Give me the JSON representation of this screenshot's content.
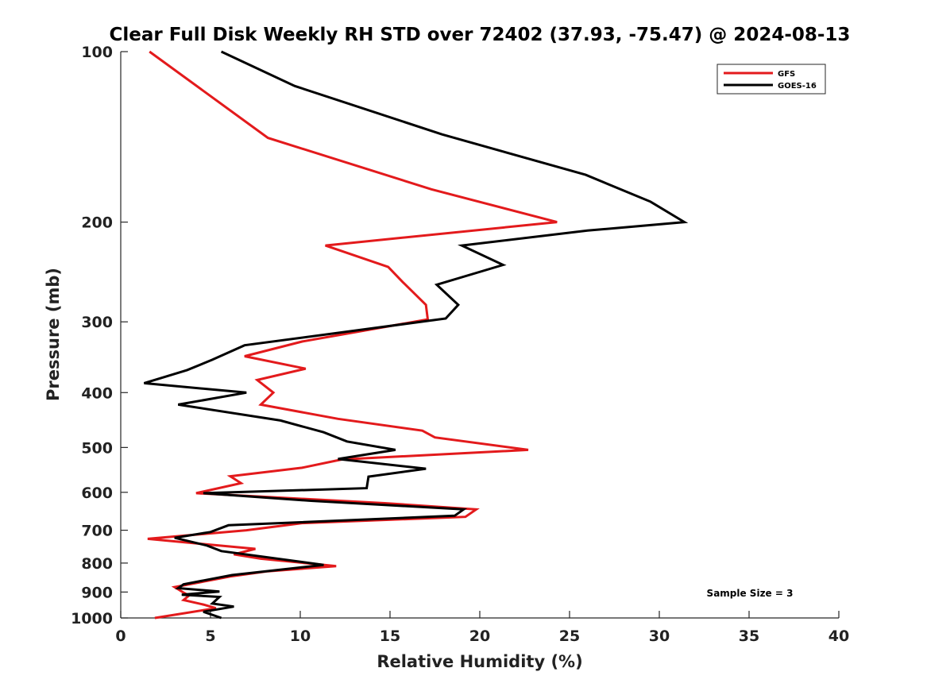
{
  "chart_data": {
    "type": "line",
    "title": "Clear Full Disk Weekly RH STD over 72402 (37.93, -75.47) @ 2024-08-13",
    "xlabel": "Relative Humidity (%)",
    "ylabel": "Pressure (mb)",
    "xlim": [
      0,
      40
    ],
    "ylim": [
      100,
      1000
    ],
    "yscale": "log",
    "yreverse": true,
    "xticks": [
      0,
      5,
      10,
      15,
      20,
      25,
      30,
      35,
      40
    ],
    "yticks": [
      100,
      200,
      300,
      400,
      500,
      600,
      700,
      800,
      900,
      1000
    ],
    "legend_position": "top-right",
    "annotation": "Sample Size = 3",
    "series": [
      {
        "name": "GFS",
        "color": "#e31a1c",
        "points": [
          [
            1.6,
            100
          ],
          [
            8.2,
            142
          ],
          [
            17.3,
            175
          ],
          [
            24.3,
            200
          ],
          [
            11.4,
            220
          ],
          [
            14.9,
            240
          ],
          [
            15.7,
            255
          ],
          [
            17.0,
            280
          ],
          [
            17.1,
            297
          ],
          [
            10.1,
            325
          ],
          [
            6.9,
            345
          ],
          [
            10.3,
            363
          ],
          [
            7.6,
            380
          ],
          [
            8.5,
            400
          ],
          [
            7.8,
            420
          ],
          [
            12.1,
            445
          ],
          [
            16.8,
            467
          ],
          [
            17.5,
            480
          ],
          [
            22.7,
            505
          ],
          [
            12.3,
            525
          ],
          [
            10.1,
            543
          ],
          [
            6.1,
            562
          ],
          [
            6.7,
            578
          ],
          [
            4.2,
            602
          ],
          [
            14.7,
            627
          ],
          [
            19.8,
            643
          ],
          [
            19.2,
            663
          ],
          [
            10.1,
            680
          ],
          [
            7.0,
            700
          ],
          [
            1.5,
            725
          ],
          [
            7.5,
            755
          ],
          [
            6.3,
            772
          ],
          [
            7.8,
            786
          ],
          [
            12.0,
            810
          ],
          [
            8.2,
            827
          ],
          [
            6.1,
            845
          ],
          [
            3.0,
            882
          ],
          [
            3.5,
            902
          ],
          [
            3.8,
            913
          ],
          [
            3.5,
            930
          ],
          [
            4.6,
            947
          ],
          [
            5.3,
            961
          ],
          [
            1.9,
            1000
          ]
        ]
      },
      {
        "name": "GOES-16",
        "color": "#000000",
        "points": [
          [
            5.6,
            100
          ],
          [
            9.7,
            115
          ],
          [
            17.9,
            140
          ],
          [
            25.9,
            165
          ],
          [
            29.5,
            184
          ],
          [
            31.4,
            200
          ],
          [
            26.0,
            207
          ],
          [
            19.0,
            220
          ],
          [
            21.3,
            238
          ],
          [
            17.6,
            258
          ],
          [
            18.8,
            280
          ],
          [
            18.1,
            296
          ],
          [
            6.9,
            330
          ],
          [
            5.1,
            350
          ],
          [
            3.7,
            365
          ],
          [
            1.3,
            385
          ],
          [
            7.0,
            400
          ],
          [
            3.2,
            420
          ],
          [
            8.9,
            448
          ],
          [
            11.3,
            470
          ],
          [
            12.6,
            488
          ],
          [
            15.3,
            505
          ],
          [
            12.1,
            524
          ],
          [
            17.0,
            545
          ],
          [
            13.8,
            563
          ],
          [
            13.7,
            590
          ],
          [
            4.6,
            602
          ],
          [
            10.6,
            621
          ],
          [
            19.1,
            643
          ],
          [
            18.6,
            660
          ],
          [
            6.0,
            686
          ],
          [
            5.0,
            705
          ],
          [
            3.0,
            722
          ],
          [
            4.8,
            745
          ],
          [
            5.6,
            762
          ],
          [
            11.3,
            806
          ],
          [
            6.2,
            840
          ],
          [
            3.5,
            872
          ],
          [
            3.2,
            886
          ],
          [
            5.5,
            898
          ],
          [
            3.4,
            910
          ],
          [
            5.5,
            918
          ],
          [
            5.1,
            943
          ],
          [
            6.3,
            955
          ],
          [
            4.6,
            975
          ],
          [
            5.6,
            1000
          ]
        ]
      }
    ]
  }
}
